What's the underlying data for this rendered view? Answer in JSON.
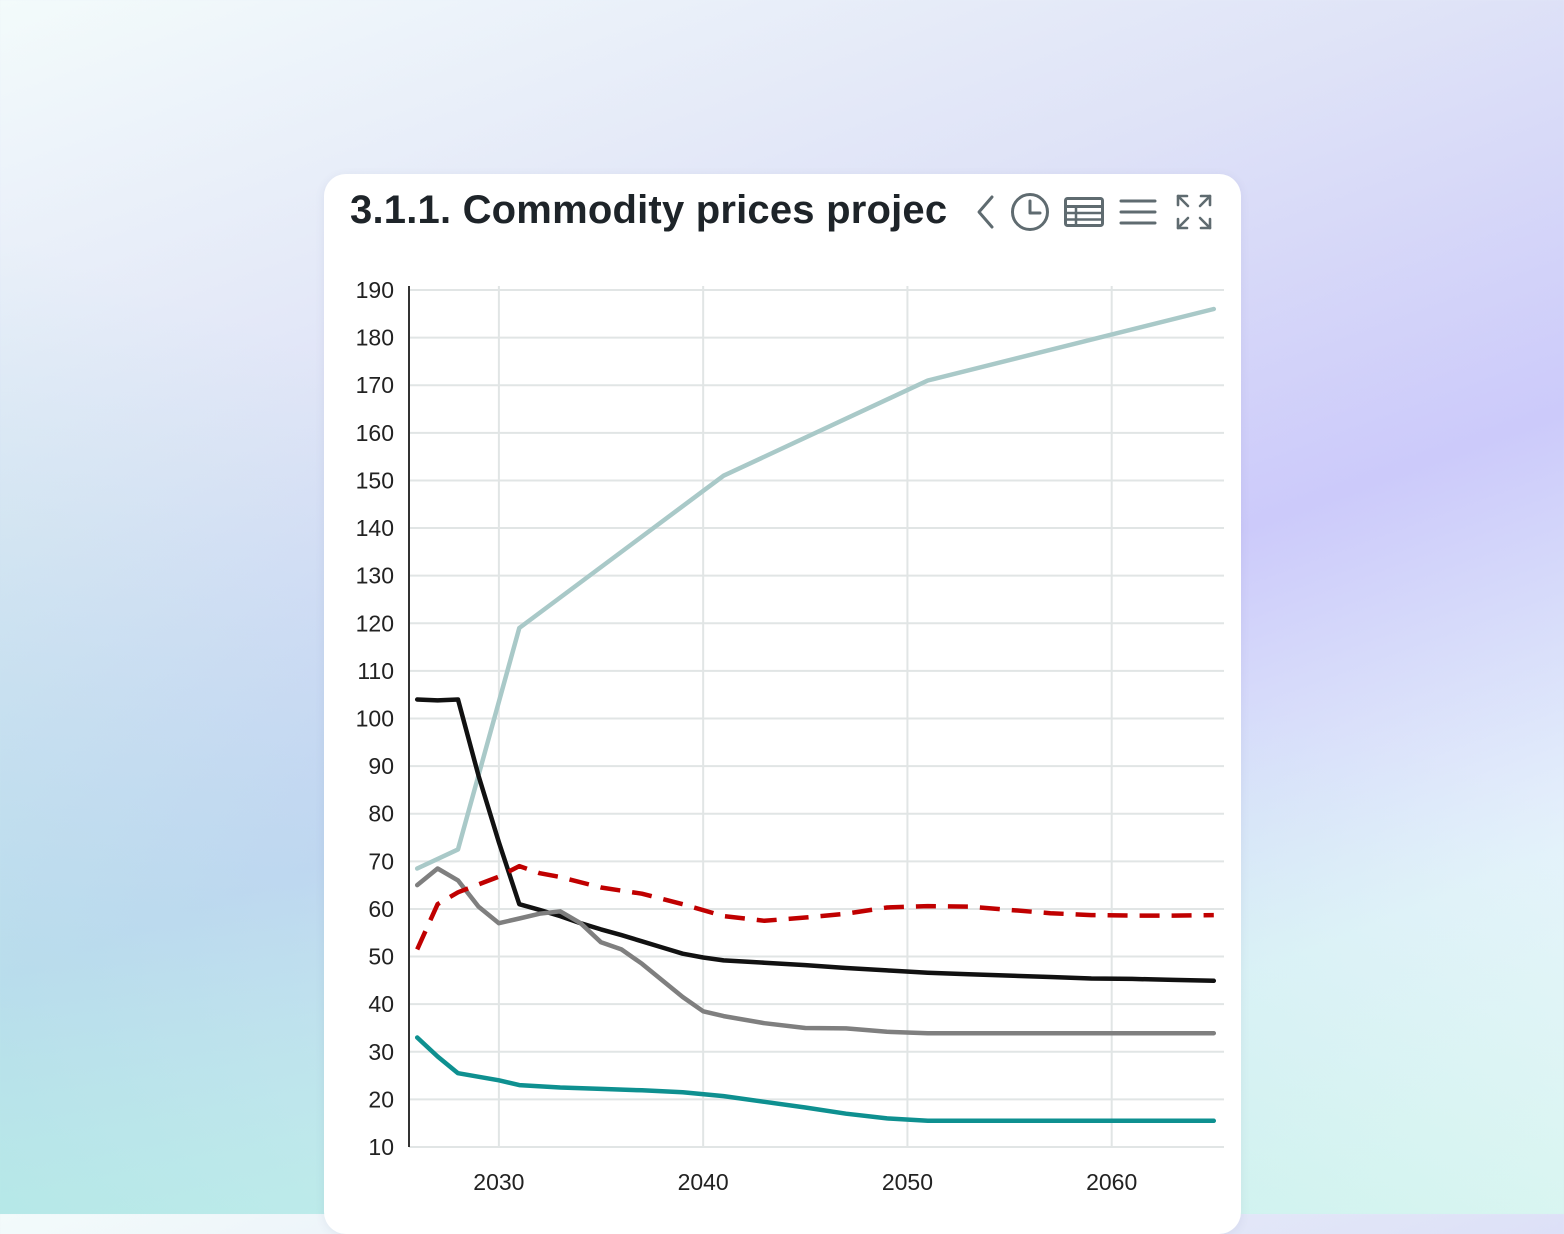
{
  "card": {
    "title": "3.1.1. Commodity prices projec"
  },
  "toolbar": {
    "icons": [
      "chevron-left-icon",
      "history-clock-icon",
      "table-icon",
      "menu-icon",
      "fullscreen-icon"
    ]
  },
  "colors": {
    "accent_light_teal": "#a9c9c8",
    "black": "#111111",
    "gray": "#7f7f7f",
    "dark_red": "#c00000",
    "teal": "#0e9090",
    "grid": "#e1e5e5",
    "icon": "#5f6b70"
  },
  "chart_data": {
    "type": "line",
    "title": "3.1.1. Commodity prices projec",
    "xlabel": "",
    "ylabel": "",
    "xlim": [
      2025.6,
      2065.4
    ],
    "ylim": [
      10,
      190
    ],
    "x_ticks": [
      2030,
      2040,
      2050,
      2060
    ],
    "x_tick_labels": [
      "2030",
      "2040",
      "2050",
      "2060"
    ],
    "y_ticks": [
      10,
      20,
      30,
      40,
      50,
      60,
      70,
      80,
      90,
      100,
      110,
      120,
      130,
      140,
      150,
      160,
      170,
      180,
      190
    ],
    "y_tick_labels": [
      "10",
      "20",
      "30",
      "40",
      "50",
      "60",
      "70",
      "80",
      "90",
      "100",
      "110",
      "120",
      "130",
      "140",
      "150",
      "160",
      "170",
      "180",
      "190"
    ],
    "grid": true,
    "legend": "none",
    "series": [
      {
        "name": "light-teal",
        "color": "#a9c9c8",
        "dash": false,
        "x": [
          2026,
          2028,
          2031,
          2041,
          2051,
          2065
        ],
        "y": [
          68.5,
          72.5,
          119,
          151,
          171,
          186
        ]
      },
      {
        "name": "black",
        "color": "#111111",
        "dash": false,
        "x": [
          2026,
          2027,
          2028,
          2029,
          2030,
          2031,
          2032,
          2033,
          2034,
          2035,
          2036,
          2037,
          2038,
          2039,
          2040,
          2041,
          2043,
          2045,
          2047,
          2049,
          2051,
          2053,
          2055,
          2057,
          2059,
          2061,
          2063,
          2065
        ],
        "y": [
          104,
          103.8,
          104,
          88,
          74,
          61,
          59.8,
          58.5,
          57,
          55.7,
          54.5,
          53.2,
          51.9,
          50.6,
          49.8,
          49.2,
          48.7,
          48.2,
          47.6,
          47.1,
          46.6,
          46.3,
          46.0,
          45.7,
          45.4,
          45.3,
          45.1,
          44.9
        ]
      },
      {
        "name": "gray",
        "color": "#7f7f7f",
        "dash": false,
        "x": [
          2026,
          2027,
          2028,
          2029,
          2030,
          2031,
          2032,
          2033,
          2034,
          2035,
          2036,
          2037,
          2038,
          2039,
          2040,
          2041,
          2043,
          2045,
          2047,
          2049,
          2051,
          2055,
          2060,
          2065
        ],
        "y": [
          65,
          68.5,
          66,
          60.5,
          57,
          58,
          59,
          59.5,
          57,
          53,
          51.5,
          48.5,
          45,
          41.5,
          38.5,
          37.5,
          36,
          35,
          34.9,
          34.2,
          33.9,
          33.9,
          33.9,
          33.9
        ]
      },
      {
        "name": "dark-red-dashed",
        "color": "#c00000",
        "dash": true,
        "x": [
          2026,
          2027,
          2028,
          2030,
          2031,
          2032,
          2033,
          2035,
          2037,
          2039,
          2041,
          2043,
          2045,
          2047,
          2049,
          2051,
          2053,
          2055,
          2057,
          2059,
          2061,
          2063,
          2065
        ],
        "y": [
          51.5,
          61,
          63.5,
          66.8,
          69,
          67.5,
          66.7,
          64.5,
          63.2,
          61,
          58.5,
          57.5,
          58.2,
          59,
          60.3,
          60.6,
          60.5,
          59.8,
          59.1,
          58.7,
          58.6,
          58.6,
          58.7
        ]
      },
      {
        "name": "teal",
        "color": "#0e9090",
        "dash": false,
        "x": [
          2026,
          2027,
          2028,
          2030,
          2031,
          2033,
          2035,
          2037,
          2039,
          2041,
          2043,
          2045,
          2047,
          2049,
          2051,
          2055,
          2060,
          2065
        ],
        "y": [
          33,
          29,
          25.5,
          24,
          23,
          22.5,
          22.2,
          21.9,
          21.5,
          20.7,
          19.5,
          18.3,
          17,
          16,
          15.5,
          15.5,
          15.5,
          15.5
        ]
      }
    ]
  }
}
